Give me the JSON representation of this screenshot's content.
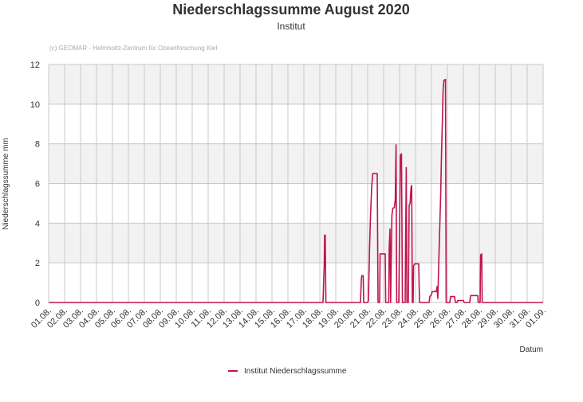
{
  "chart_data": {
    "type": "line",
    "title": "Niederschlagssumme August 2020",
    "subtitle": "Institut",
    "credit": "(c) GEOMAR - Helmholtz-Zentrum für Ozeanforschung Kiel",
    "xlabel": "Datum",
    "ylabel": "Niederschlagssumme mm",
    "ylim": [
      0,
      12
    ],
    "yticks": [
      0,
      2,
      4,
      6,
      8,
      10,
      12
    ],
    "x_range_days": [
      1,
      32
    ],
    "xtick_labels": [
      "01.08.",
      "02.08.",
      "03.08.",
      "04.08.",
      "05.08.",
      "06.08.",
      "07.08.",
      "08.08.",
      "09.08.",
      "10.08.",
      "11.08.",
      "12.08.",
      "13.08.",
      "14.08.",
      "15.08.",
      "16.08.",
      "17.08.",
      "18.08.",
      "19.08.",
      "20.08.",
      "21.08.",
      "22.08.",
      "23.08.",
      "24.08.",
      "25.08.",
      "26.08.",
      "27.08.",
      "28.08.",
      "29.08.",
      "30.08.",
      "31.08.",
      "01.09."
    ],
    "grid": true,
    "legend_position": "bottom-center",
    "colors": {
      "series": "#c0144c",
      "band": "#f2f2f2",
      "grid": "#c8c8c8"
    },
    "series": [
      {
        "name": "Institut Niederschlagssumme",
        "points": [
          [
            1.0,
            0
          ],
          [
            18.2,
            0
          ],
          [
            18.28,
            2.0
          ],
          [
            18.3,
            3.4
          ],
          [
            18.34,
            3.4
          ],
          [
            18.38,
            0
          ],
          [
            20.55,
            0
          ],
          [
            20.6,
            1.1
          ],
          [
            20.63,
            1.35
          ],
          [
            20.72,
            1.35
          ],
          [
            20.75,
            0
          ],
          [
            21.0,
            0
          ],
          [
            21.05,
            0.1
          ],
          [
            21.12,
            2.8
          ],
          [
            21.18,
            4.4
          ],
          [
            21.25,
            5.8
          ],
          [
            21.32,
            6.5
          ],
          [
            21.6,
            6.5
          ],
          [
            21.65,
            0
          ],
          [
            21.75,
            0
          ],
          [
            21.78,
            2.45
          ],
          [
            22.1,
            2.45
          ],
          [
            22.13,
            0
          ],
          [
            22.32,
            0
          ],
          [
            22.35,
            2.75
          ],
          [
            22.4,
            3.7
          ],
          [
            22.44,
            0
          ],
          [
            22.48,
            2.3
          ],
          [
            22.52,
            4.4
          ],
          [
            22.58,
            4.75
          ],
          [
            22.68,
            4.8
          ],
          [
            22.73,
            5.2
          ],
          [
            22.78,
            7.95
          ],
          [
            22.82,
            0
          ],
          [
            22.95,
            0
          ],
          [
            23.0,
            3.5
          ],
          [
            23.05,
            7.4
          ],
          [
            23.12,
            7.5
          ],
          [
            23.18,
            0
          ],
          [
            23.35,
            0
          ],
          [
            23.42,
            6.8
          ],
          [
            23.46,
            0
          ],
          [
            23.55,
            0
          ],
          [
            23.6,
            4.9
          ],
          [
            23.66,
            5.0
          ],
          [
            23.72,
            5.8
          ],
          [
            23.76,
            5.9
          ],
          [
            23.8,
            0
          ],
          [
            23.85,
            0
          ],
          [
            23.88,
            1.85
          ],
          [
            23.95,
            1.95
          ],
          [
            24.2,
            1.95
          ],
          [
            24.25,
            0
          ],
          [
            24.85,
            0
          ],
          [
            24.9,
            0.3
          ],
          [
            25.0,
            0.4
          ],
          [
            25.05,
            0.55
          ],
          [
            25.3,
            0.55
          ],
          [
            25.35,
            0.8
          ],
          [
            25.4,
            0.2
          ],
          [
            25.45,
            1.8
          ],
          [
            25.52,
            3.8
          ],
          [
            25.58,
            5.5
          ],
          [
            25.63,
            7.5
          ],
          [
            25.68,
            9.0
          ],
          [
            25.73,
            10.7
          ],
          [
            25.78,
            11.2
          ],
          [
            25.88,
            11.25
          ],
          [
            25.92,
            0
          ],
          [
            26.15,
            0
          ],
          [
            26.2,
            0.3
          ],
          [
            26.45,
            0.3
          ],
          [
            26.5,
            0
          ],
          [
            26.6,
            0
          ],
          [
            26.65,
            0.1
          ],
          [
            27.0,
            0.1
          ],
          [
            27.05,
            0
          ],
          [
            27.4,
            0
          ],
          [
            27.45,
            0.35
          ],
          [
            27.9,
            0.35
          ],
          [
            27.93,
            0
          ],
          [
            28.05,
            0
          ],
          [
            28.08,
            2.4
          ],
          [
            28.15,
            2.45
          ],
          [
            28.18,
            0
          ],
          [
            32.0,
            0
          ]
        ]
      }
    ]
  }
}
